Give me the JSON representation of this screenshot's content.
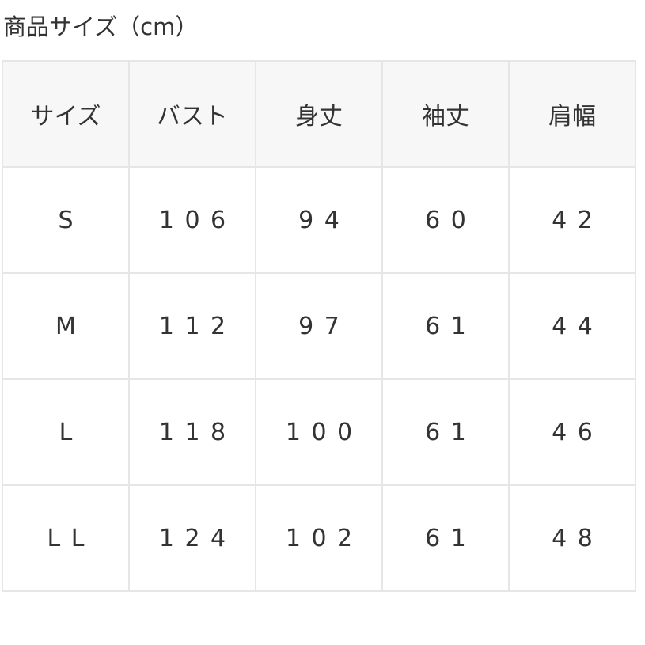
{
  "title": "商品サイズ（cm）",
  "table": {
    "headers": [
      "サイズ",
      "バスト",
      "身丈",
      "袖丈",
      "肩幅"
    ],
    "rows": [
      [
        "S",
        "106",
        "94",
        "60",
        "42"
      ],
      [
        "M",
        "112",
        "97",
        "61",
        "44"
      ],
      [
        "L",
        "118",
        "100",
        "61",
        "46"
      ],
      [
        "LL",
        "124",
        "102",
        "61",
        "48"
      ]
    ]
  },
  "colors": {
    "border": "#e6e6e6",
    "header_bg": "#f7f7f7",
    "text": "#333333"
  }
}
